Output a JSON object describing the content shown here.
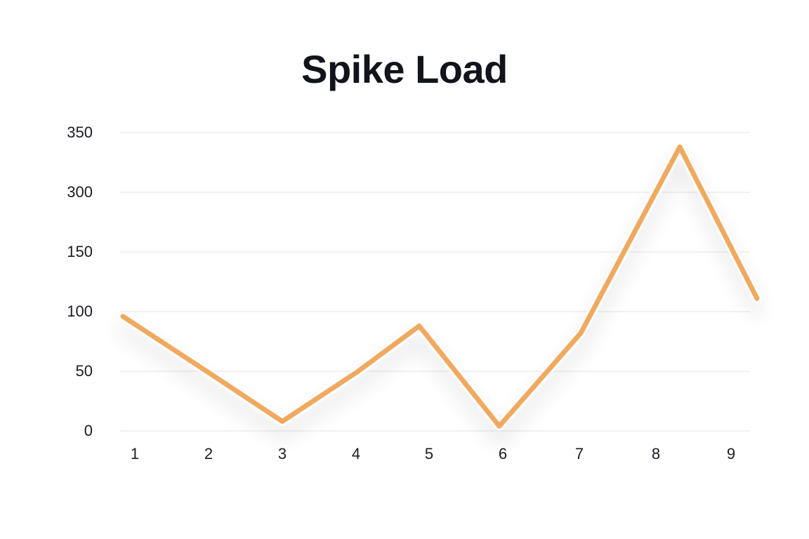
{
  "chart_data": {
    "type": "line",
    "title": "Spike Load",
    "xlabel": "",
    "ylabel": "",
    "categories": [
      "1",
      "2",
      "3",
      "4",
      "5",
      "6",
      "7",
      "8",
      "9"
    ],
    "y_ticks": [
      "0",
      "50",
      "100",
      "150",
      "300",
      "350"
    ],
    "series": [
      {
        "name": "Spike Load",
        "color": "#f0a95e",
        "values": [
          96,
          52,
          8,
          50,
          88,
          4,
          82,
          338,
          111
        ]
      }
    ],
    "grid": true,
    "legend": "none"
  },
  "colors": {
    "line": "#f0a95e",
    "grid": "#e6e6ea",
    "title": "#12141c",
    "tick": "#1a1c24"
  }
}
